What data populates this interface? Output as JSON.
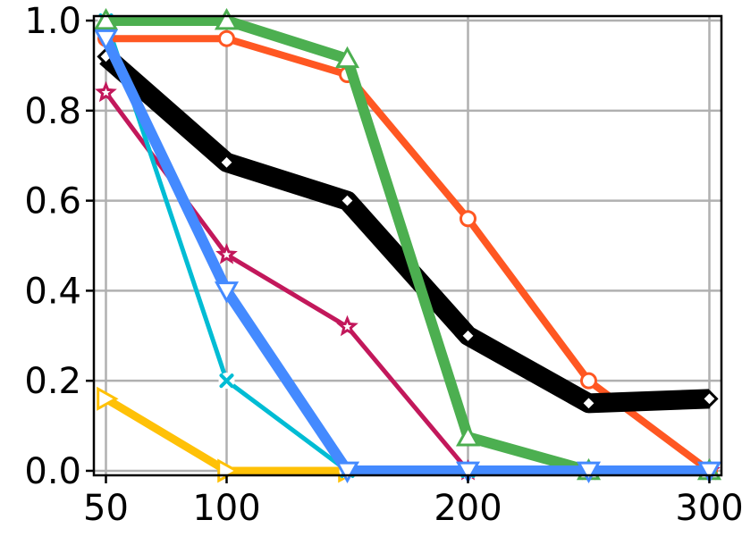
{
  "chart_data": {
    "type": "line",
    "title": "",
    "xlabel": "",
    "ylabel": "",
    "xlim": [
      45,
      305
    ],
    "ylim": [
      -0.01,
      1.01
    ],
    "grid": true,
    "legend": "none",
    "x": [
      50,
      100,
      150,
      200,
      250,
      300
    ],
    "x_ticks": [
      50,
      100,
      200,
      300
    ],
    "x_tick_labels": [
      "50",
      "100",
      "200",
      "300"
    ],
    "y_ticks": [
      0.0,
      0.2,
      0.4,
      0.6,
      0.8,
      1.0
    ],
    "y_tick_labels": [
      "0.0",
      "0.2",
      "0.4",
      "0.6",
      "0.8",
      "1.0"
    ],
    "series": [
      {
        "color": "#ffc107",
        "marker": "triangle-right",
        "line_width": 9,
        "values": [
          0.16,
          0.0,
          0.0,
          null,
          null,
          null
        ]
      },
      {
        "color": "#c2185b",
        "marker": "star",
        "line_width": 5,
        "values": [
          0.84,
          0.48,
          0.32,
          0.0,
          0.0,
          0.0
        ]
      },
      {
        "color": "#00bcd4",
        "marker": "x-filled",
        "line_width": 5,
        "values": [
          1.0,
          0.2,
          0.0,
          0.0,
          0.0,
          0.0
        ]
      },
      {
        "color": "#ff5722",
        "marker": "circle",
        "line_width": 8,
        "values": [
          0.96,
          0.96,
          0.88,
          0.56,
          0.2,
          0.0
        ]
      },
      {
        "color": "#000000",
        "marker": "diamond",
        "line_width": 22,
        "values": [
          0.92,
          0.685,
          0.6,
          0.3,
          0.15,
          0.16
        ]
      },
      {
        "color": "#4caf50",
        "marker": "triangle-up",
        "line_width": 12,
        "values": [
          1.0,
          1.0,
          0.915,
          0.075,
          0.0,
          0.0
        ]
      },
      {
        "color": "#448aff",
        "marker": "triangle-down",
        "line_width": 12,
        "values": [
          0.96,
          0.4,
          0.0,
          0.0,
          0.0,
          0.0
        ]
      }
    ]
  }
}
